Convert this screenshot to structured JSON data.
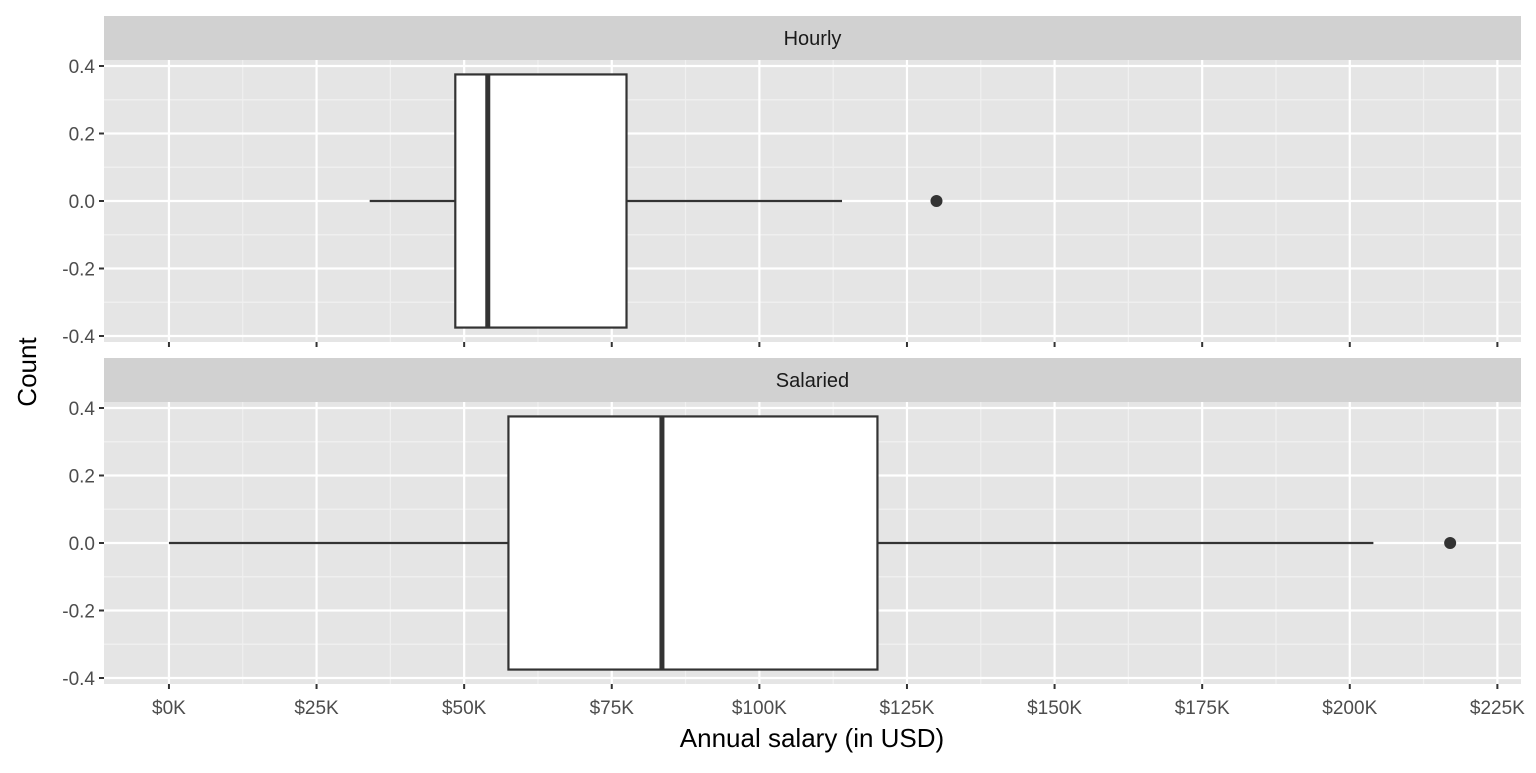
{
  "chart_data": {
    "type": "boxplot",
    "orientation": "horizontal",
    "xlabel": "Annual salary (in USD)",
    "ylabel": "Count",
    "xlim": [
      -11000,
      229000
    ],
    "ylim": [
      -0.4,
      0.4
    ],
    "x_ticks": [
      0,
      25000,
      50000,
      75000,
      100000,
      125000,
      150000,
      175000,
      200000,
      225000
    ],
    "x_tick_labels": [
      "$0K",
      "$25K",
      "$50K",
      "$75K",
      "$100K",
      "$125K",
      "$150K",
      "$175K",
      "$200K",
      "$225K"
    ],
    "y_ticks": [
      -0.4,
      -0.2,
      0.0,
      0.2,
      0.4
    ],
    "y_tick_labels": [
      "-0.4",
      "-0.2",
      "0.0",
      "0.2",
      "0.4"
    ],
    "grid": true,
    "box_half_height": 0.375,
    "panels": [
      {
        "name": "Hourly",
        "whisker_low": 34000,
        "q1": 48500,
        "median": 54000,
        "q3": 77500,
        "whisker_high": 114000,
        "outliers": [
          130000
        ]
      },
      {
        "name": "Salaried",
        "whisker_low": 0,
        "q1": 57500,
        "median": 83500,
        "q3": 120000,
        "whisker_high": 204000,
        "outliers": [
          217000
        ]
      }
    ],
    "colors": {
      "panel_background": "#e5e5e5",
      "strip_background": "#d1d1d1",
      "grid_major": "#ffffff",
      "grid_minor": "#f0f0f0",
      "box_fill": "#ffffff",
      "box_stroke": "#333333",
      "text": "#4d4d4d",
      "title_text": "#000000"
    }
  }
}
